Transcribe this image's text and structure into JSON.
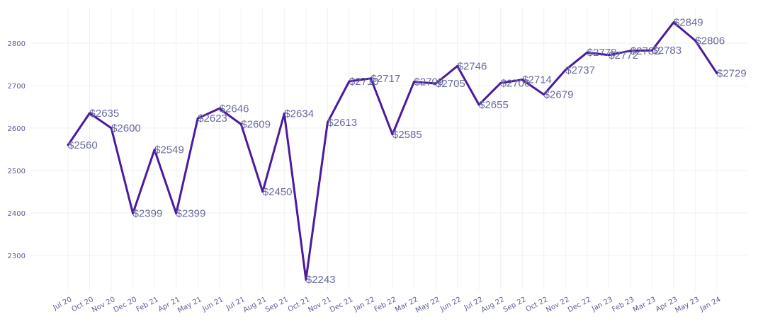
{
  "chart_data": {
    "type": "line",
    "title": "",
    "xlabel": "",
    "ylabel": "",
    "categories": [
      "Jul 20",
      "Oct 20",
      "Nov 20",
      "Dec 20",
      "Feb 21",
      "Apr 21",
      "May 21",
      "Jun 21",
      "Jul 21",
      "Aug 21",
      "Sep 21",
      "Oct 21",
      "Nov 21",
      "Dec 21",
      "Jan 22",
      "Feb 22",
      "Mar 22",
      "May 22",
      "Jun 22",
      "Jul 22",
      "Aug 22",
      "Sep 22",
      "Oct 22",
      "Nov 22",
      "Dec 22",
      "Jan 23",
      "Feb 23",
      "Mar 23",
      "Apr 23",
      "May 23",
      "Jan 24"
    ],
    "series": [
      {
        "values": [
          2560,
          2635,
          2600,
          2399,
          2549,
          2399,
          2623,
          2646,
          2609,
          2450,
          2634,
          2243,
          2613,
          2710,
          2717,
          2585,
          2709,
          2705,
          2746,
          2655,
          2706,
          2714,
          2679,
          2737,
          2778,
          2772,
          2782,
          2783,
          2849,
          2806,
          2729
        ]
      }
    ],
    "data_labels": [
      "$2560",
      "$2635",
      "$2600",
      "$2399",
      "$2549",
      "$2399",
      "$2623",
      "$2646",
      "$2609",
      "$2450",
      "$2634",
      "$2243",
      "$2613",
      "$2710",
      "$2717",
      "$2585",
      "$2709",
      "$2705",
      "$2746",
      "$2655",
      "$2706",
      "$2714",
      "$2679",
      "$2737",
      "$2778",
      "$2772",
      "$2782",
      "$2783",
      "$2849",
      "$2806",
      "$2729"
    ],
    "yticks": [
      2300,
      2400,
      2500,
      2600,
      2700,
      2800
    ],
    "ylim": [
      2223,
      2890
    ],
    "grid": true,
    "line_color": "#4a1aa0"
  }
}
